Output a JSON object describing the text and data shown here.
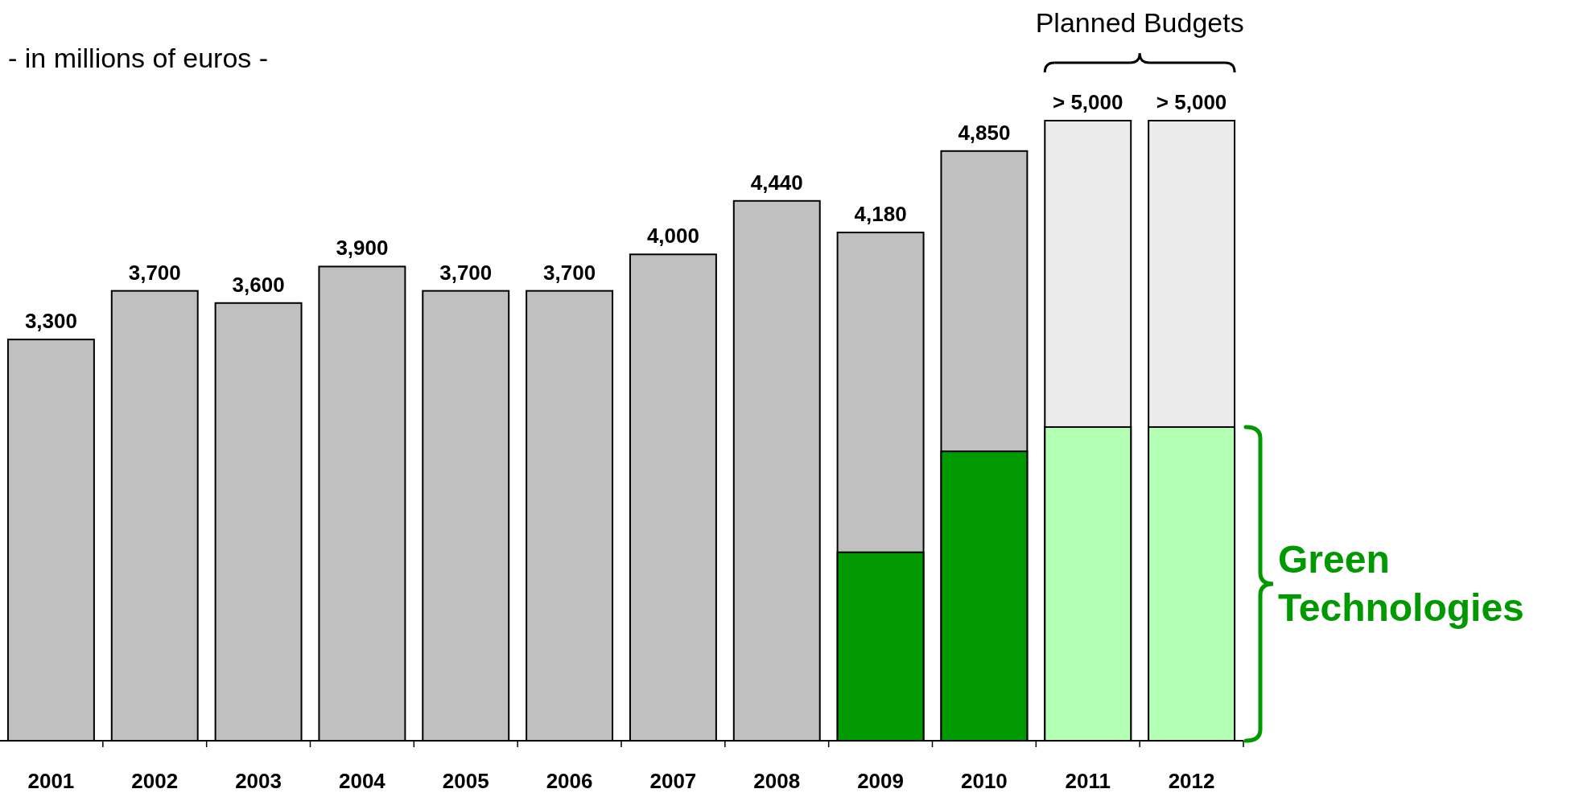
{
  "chart_data": {
    "type": "bar",
    "categories": [
      "2001",
      "2002",
      "2003",
      "2004",
      "2005",
      "2006",
      "2007",
      "2008",
      "2009",
      "2010",
      "2011",
      "2012"
    ],
    "series": [
      {
        "colors": [
          "#c0c0c0",
          "#c0c0c0",
          "#c0c0c0",
          "#c0c0c0",
          "#c0c0c0",
          "#c0c0c0",
          "#c0c0c0",
          "#c0c0c0",
          "#c0c0c0",
          "#c0c0c0",
          "#ebebeb",
          "#ebebeb"
        ],
        "values": [
          3300,
          3700,
          3600,
          3900,
          3700,
          3700,
          4000,
          4440,
          4180,
          4850,
          5100,
          5100
        ],
        "value_labels": [
          "3,300",
          "3,700",
          "3,600",
          "3,900",
          "3,700",
          "3,700",
          "4,000",
          "4,440",
          "4,180",
          "4,850",
          "> 5,000",
          "> 5,000"
        ]
      },
      {
        "name": "Green Technologies",
        "color": "#009900",
        "colors": [
          null,
          null,
          null,
          null,
          null,
          null,
          null,
          null,
          "#009900",
          "#009900",
          "#b3ffb3",
          "#b3ffb3"
        ],
        "values": [
          null,
          null,
          null,
          null,
          null,
          null,
          null,
          null,
          1550,
          2380,
          2580,
          2580
        ]
      }
    ],
    "annotations": [
      "- in millions of euros -",
      "Planned Budgets"
    ]
  }
}
